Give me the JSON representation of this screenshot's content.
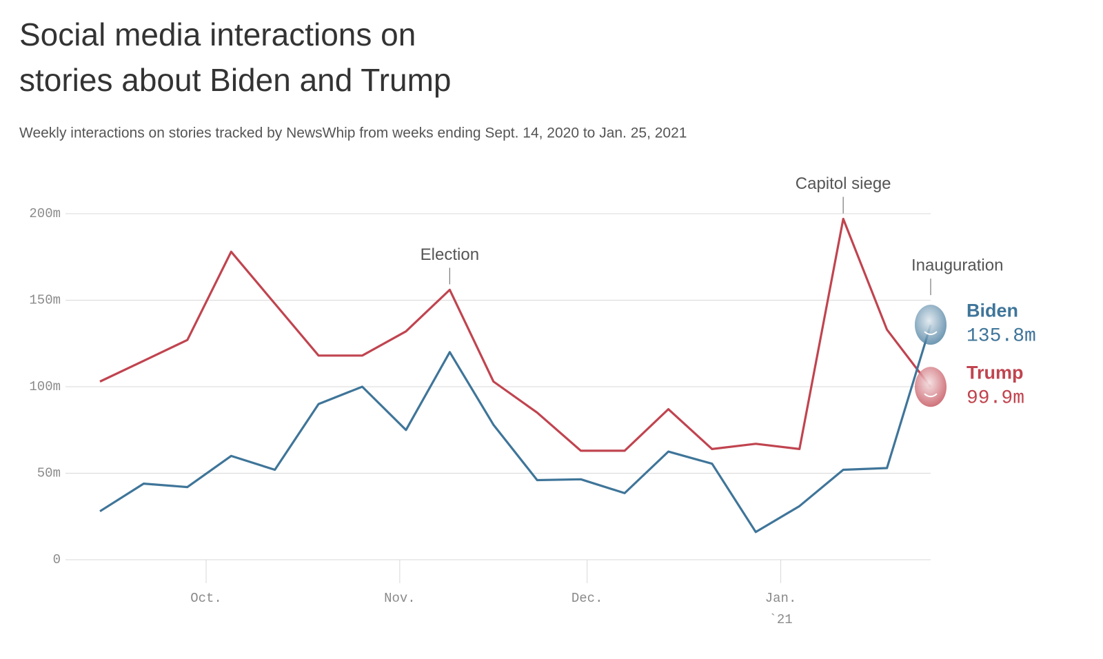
{
  "chart_data": {
    "type": "line",
    "title": "Social media interactions on stories about Biden and Trump",
    "subtitle": "Weekly interactions on stories tracked by NewsWhip from weeks ending Sept. 14, 2020 to Jan. 25, 2021",
    "x": [
      "2020-09-14",
      "2020-09-21",
      "2020-09-28",
      "2020-10-05",
      "2020-10-12",
      "2020-10-19",
      "2020-10-26",
      "2020-11-02",
      "2020-11-09",
      "2020-11-16",
      "2020-11-23",
      "2020-11-30",
      "2020-12-07",
      "2020-12-14",
      "2020-12-21",
      "2020-12-28",
      "2021-01-04",
      "2021-01-11",
      "2021-01-18",
      "2021-01-25"
    ],
    "series": [
      {
        "name": "Trump",
        "color": "#c0444f",
        "values": [
          103,
          115,
          127,
          178,
          148,
          118,
          118,
          132,
          156,
          103,
          85,
          63,
          63,
          87,
          64,
          67,
          64,
          197,
          133,
          99.9
        ],
        "value_labels": {
          "19": "99.9m"
        }
      },
      {
        "name": "Biden",
        "color": "#3f7599",
        "values": [
          28,
          44,
          42,
          60,
          52,
          90,
          100,
          75,
          120,
          78,
          46,
          46.5,
          38.5,
          62.5,
          55.5,
          16,
          31,
          52,
          53,
          135.8
        ],
        "value_labels": {
          "19": "135.8m"
        }
      }
    ],
    "xlim": [
      "2020-09-14",
      "2021-01-25"
    ],
    "xticks": [
      {
        "value": "2020-10-01",
        "label": "Oct."
      },
      {
        "value": "2020-11-01",
        "label": "Nov."
      },
      {
        "value": "2020-12-01",
        "label": "Dec."
      },
      {
        "value": "2021-01-01",
        "label": "Jan."
      }
    ],
    "year_label": "`21",
    "ylim": [
      0,
      200
    ],
    "yticks": [
      0,
      {
        "value": 50,
        "label": "50m"
      },
      {
        "value": 100,
        "label": "100m"
      },
      {
        "value": 150,
        "label": "150m"
      },
      {
        "value": 200,
        "label": "200m"
      }
    ],
    "grid": true,
    "annotations": [
      {
        "text": "Election",
        "x": "2020-11-09"
      },
      {
        "text": "Capitol siege",
        "x": "2021-01-11"
      },
      {
        "text": "Inauguration",
        "x": "2021-01-25"
      }
    ]
  }
}
